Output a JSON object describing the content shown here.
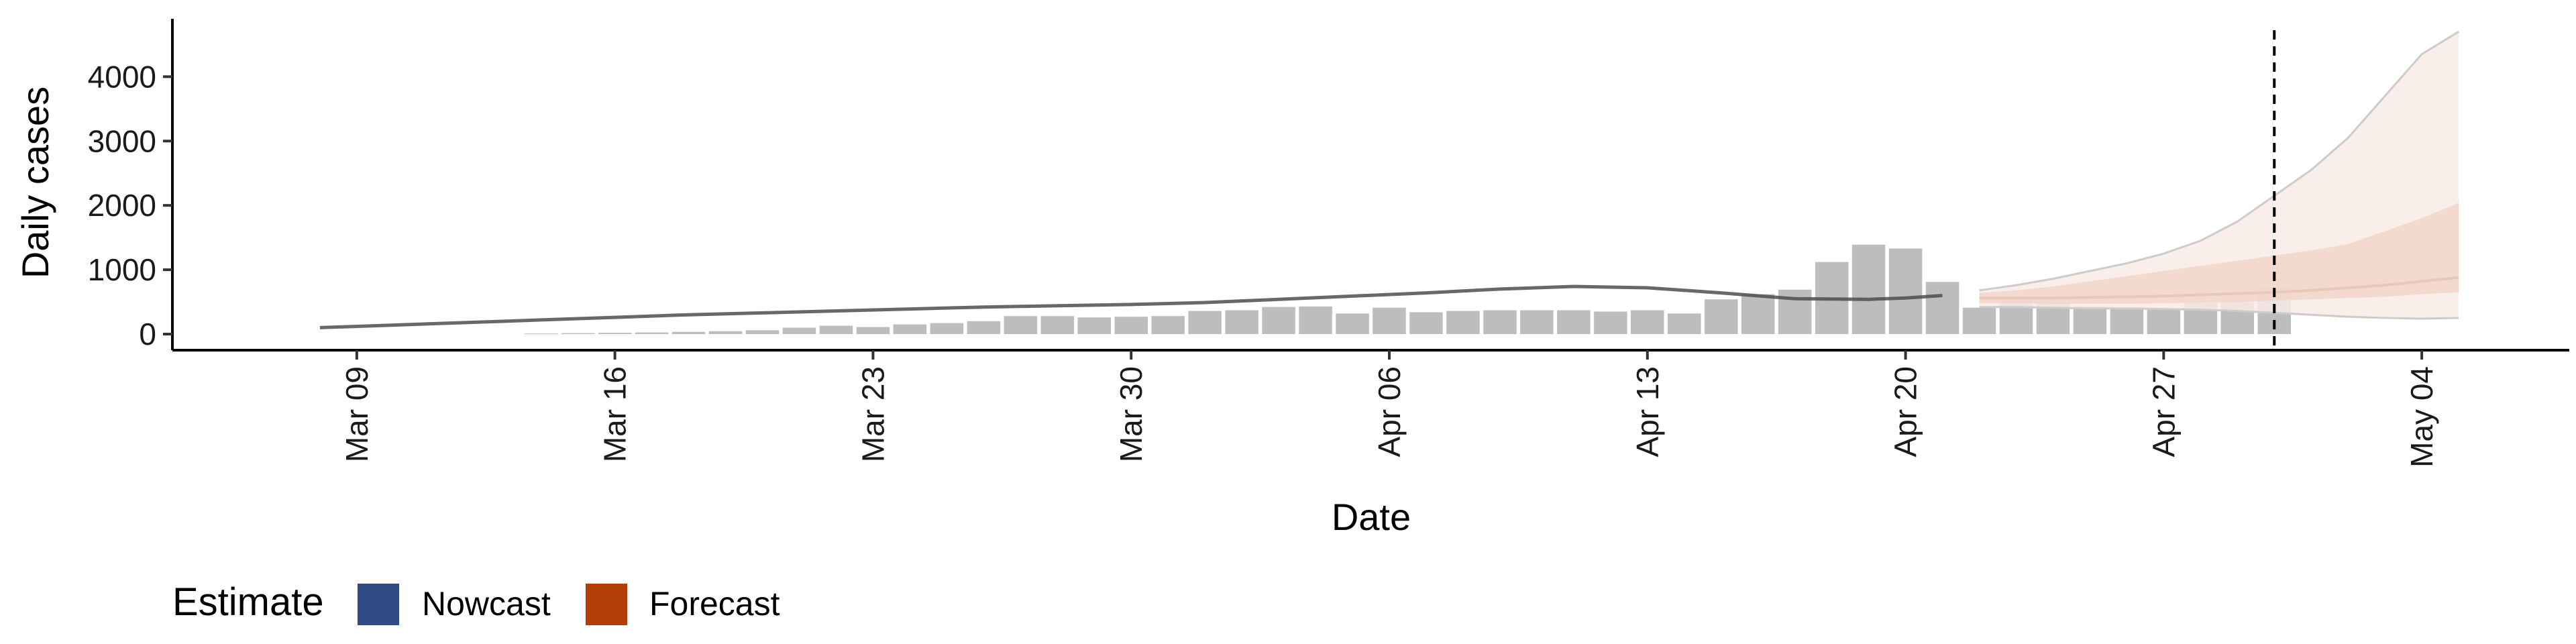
{
  "chart_data": {
    "type": "bar",
    "xlabel": "Date",
    "ylabel": "Daily cases",
    "xlim": [
      "2020-03-04",
      "2020-05-08"
    ],
    "ylim": [
      -250,
      4900
    ],
    "x_ticks": [
      {
        "date": "2020-03-09",
        "label": "Mar 09"
      },
      {
        "date": "2020-03-16",
        "label": "Mar 16"
      },
      {
        "date": "2020-03-23",
        "label": "Mar 23"
      },
      {
        "date": "2020-03-30",
        "label": "Mar 30"
      },
      {
        "date": "2020-04-06",
        "label": "Apr 06"
      },
      {
        "date": "2020-04-13",
        "label": "Apr 13"
      },
      {
        "date": "2020-04-20",
        "label": "Apr 20"
      },
      {
        "date": "2020-04-27",
        "label": "Apr 27"
      },
      {
        "date": "2020-05-04",
        "label": "May 04"
      }
    ],
    "y_ticks": [
      0,
      1000,
      2000,
      3000,
      4000
    ],
    "grid": false,
    "reported_cases": {
      "dates": [
        "2020-03-14",
        "2020-03-15",
        "2020-03-16",
        "2020-03-17",
        "2020-03-18",
        "2020-03-19",
        "2020-03-20",
        "2020-03-21",
        "2020-03-22",
        "2020-03-23",
        "2020-03-24",
        "2020-03-25",
        "2020-03-26",
        "2020-03-27",
        "2020-03-28",
        "2020-03-29",
        "2020-03-30",
        "2020-03-31",
        "2020-04-01",
        "2020-04-02",
        "2020-04-03",
        "2020-04-04",
        "2020-04-05",
        "2020-04-06",
        "2020-04-07",
        "2020-04-08",
        "2020-04-09",
        "2020-04-10",
        "2020-04-11",
        "2020-04-12",
        "2020-04-13",
        "2020-04-14",
        "2020-04-15",
        "2020-04-16",
        "2020-04-17",
        "2020-04-18",
        "2020-04-19",
        "2020-04-20",
        "2020-04-21",
        "2020-04-22",
        "2020-04-23",
        "2020-04-24",
        "2020-04-25",
        "2020-04-26",
        "2020-04-27",
        "2020-04-28",
        "2020-04-29",
        "2020-04-30"
      ],
      "values": [
        10,
        15,
        20,
        25,
        35,
        45,
        60,
        100,
        130,
        110,
        150,
        170,
        200,
        280,
        280,
        260,
        270,
        280,
        360,
        370,
        420,
        430,
        320,
        410,
        340,
        360,
        370,
        370,
        370,
        350,
        370,
        320,
        540,
        620,
        690,
        1120,
        1390,
        1330,
        810,
        410,
        570,
        490,
        430,
        400,
        380,
        490,
        520,
        730
      ]
    },
    "estimate": {
      "dates": [
        "2020-03-08",
        "2020-03-10",
        "2020-03-12",
        "2020-03-14",
        "2020-03-16",
        "2020-03-18",
        "2020-03-20",
        "2020-03-22",
        "2020-03-24",
        "2020-03-26",
        "2020-03-28",
        "2020-03-30",
        "2020-04-01",
        "2020-04-03",
        "2020-04-05",
        "2020-04-07",
        "2020-04-09",
        "2020-04-11",
        "2020-04-13",
        "2020-04-15",
        "2020-04-17",
        "2020-04-19",
        "2020-04-20",
        "2020-04-21"
      ],
      "median": [
        100,
        140,
        180,
        220,
        260,
        300,
        330,
        360,
        390,
        420,
        440,
        460,
        490,
        540,
        590,
        640,
        700,
        740,
        720,
        640,
        550,
        540,
        560,
        600
      ]
    },
    "forecast": {
      "dates": [
        "2020-04-22",
        "2020-04-23",
        "2020-04-24",
        "2020-04-25",
        "2020-04-26",
        "2020-04-27",
        "2020-04-28",
        "2020-04-29",
        "2020-04-30",
        "2020-05-01",
        "2020-05-02",
        "2020-05-03",
        "2020-05-04",
        "2020-05-05"
      ],
      "median": [
        560,
        560,
        560,
        570,
        580,
        590,
        610,
        630,
        650,
        680,
        720,
        760,
        820,
        880
      ],
      "lower_50": [
        480,
        480,
        470,
        470,
        470,
        480,
        490,
        500,
        520,
        540,
        560,
        580,
        620,
        650
      ],
      "upper_50": [
        640,
        680,
        740,
        820,
        900,
        980,
        1060,
        1140,
        1220,
        1300,
        1400,
        1600,
        1800,
        2040
      ],
      "lower_90": [
        420,
        420,
        410,
        400,
        400,
        390,
        380,
        360,
        330,
        300,
        270,
        250,
        240,
        250
      ],
      "upper_90": [
        680,
        760,
        860,
        980,
        1100,
        1250,
        1450,
        1750,
        2150,
        2550,
        3050,
        3700,
        4350,
        4700
      ]
    },
    "forecast_start": "2020-04-30",
    "legend": {
      "title": "Estimate",
      "position": "bottom-left",
      "items": [
        {
          "label": "Nowcast",
          "color": "#314c85"
        },
        {
          "label": "Forecast",
          "color": "#b23d05"
        }
      ]
    },
    "colors": {
      "bar": "#bdbdbd",
      "estimate_line": "#4d4d4d",
      "forecast_line": "#e8c8b8",
      "forecast_band_50": "#f0d2c4",
      "forecast_band_90": "#f8ebe5",
      "band_edge": "#cccccc"
    }
  }
}
